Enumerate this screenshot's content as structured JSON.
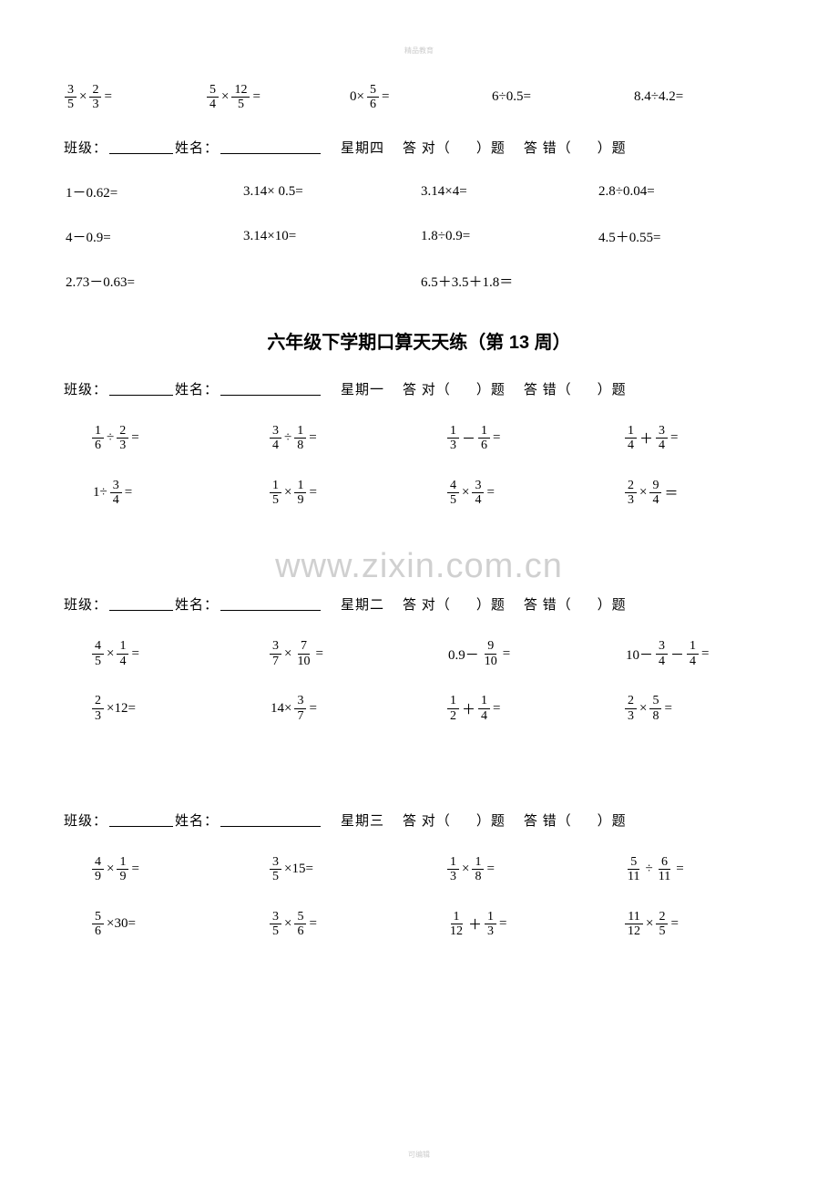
{
  "tiny_header": "精品教育",
  "footer": "可编辑",
  "watermark": "www.zixin.com.cn",
  "title": "六年级下学期口算天天练（第 13 周）",
  "header_labels": {
    "class": "班级：",
    "name": "姓名：",
    "day_thu": "星期四",
    "day_mon": "星期一",
    "day_tue": "星期二",
    "day_wed": "星期三",
    "correct_pre": "答 对（",
    "correct_suf": "）题",
    "wrong_pre": "答 错（",
    "wrong_suf": "）题"
  },
  "topRow1": [
    {
      "type": "frac_op",
      "a": {
        "n": "3",
        "d": "5"
      },
      "op": "×",
      "b": {
        "n": "2",
        "d": "3"
      },
      "eq": "="
    },
    {
      "type": "frac_op",
      "a": {
        "n": "5",
        "d": "4"
      },
      "op": "×",
      "b": {
        "n": "12",
        "d": "5"
      },
      "eq": "="
    },
    {
      "type": "mixed",
      "pre": "0×",
      "frac": {
        "n": "5",
        "d": "6"
      },
      "eq": "="
    },
    {
      "type": "plain",
      "text": "6÷0.5="
    },
    {
      "type": "plain",
      "text": "8.4÷4.2="
    }
  ],
  "thuRow1": [
    {
      "text": "1－0.62="
    },
    {
      "text": "3.14×  0.5="
    },
    {
      "text": "3.14×4="
    },
    {
      "text": "2.8÷0.04="
    }
  ],
  "thuRow2": [
    {
      "text": "4－0.9="
    },
    {
      "text": "3.14×10="
    },
    {
      "text": "1.8÷0.9="
    },
    {
      "text": "4.5＋0.55="
    }
  ],
  "thuRow3": [
    {
      "text": "2.73－0.63="
    },
    {
      "text": "6.5＋3.5＋1.8＝"
    }
  ],
  "monRow1": [
    {
      "a": {
        "n": "1",
        "d": "6"
      },
      "op": "÷",
      "b": {
        "n": "2",
        "d": "3"
      },
      "eq": "="
    },
    {
      "a": {
        "n": "3",
        "d": "4"
      },
      "op": "÷",
      "b": {
        "n": "1",
        "d": "8"
      },
      "eq": "="
    },
    {
      "a": {
        "n": "1",
        "d": "3"
      },
      "op": "－",
      "b": {
        "n": "1",
        "d": "6"
      },
      "eq": "="
    },
    {
      "a": {
        "n": "1",
        "d": "4"
      },
      "op": "＋",
      "b": {
        "n": "3",
        "d": "4"
      },
      "eq": "="
    }
  ],
  "monRow2": [
    {
      "pre": "1÷",
      "frac": {
        "n": "3",
        "d": "4"
      },
      "eq": "="
    },
    {
      "a": {
        "n": "1",
        "d": "5"
      },
      "op": "×",
      "b": {
        "n": "1",
        "d": "9"
      },
      "eq": "="
    },
    {
      "a": {
        "n": "4",
        "d": "5"
      },
      "op": "×",
      "b": {
        "n": "3",
        "d": "4"
      },
      "eq": "="
    },
    {
      "a": {
        "n": "2",
        "d": "3"
      },
      "op": "×",
      "b": {
        "n": "9",
        "d": "4"
      },
      "eq": "＝"
    }
  ],
  "tueRow1": [
    {
      "a": {
        "n": "4",
        "d": "5"
      },
      "op": "×",
      "b": {
        "n": "1",
        "d": "4"
      },
      "eq": "="
    },
    {
      "a": {
        "n": "3",
        "d": "7"
      },
      "op": "×",
      "b": {
        "n": "7",
        "d": "10"
      },
      "eq": "="
    },
    {
      "pre": "0.9－",
      "frac": {
        "n": "9",
        "d": "10"
      },
      "eq": "="
    },
    {
      "pre": "10－",
      "a": {
        "n": "3",
        "d": "4"
      },
      "op": "－",
      "b": {
        "n": "1",
        "d": "4"
      },
      "eq": "="
    }
  ],
  "tueRow2": [
    {
      "frac": {
        "n": "2",
        "d": "3"
      },
      "post": "×12="
    },
    {
      "pre": "14×",
      "frac": {
        "n": "3",
        "d": "7"
      },
      "eq": "="
    },
    {
      "a": {
        "n": "1",
        "d": "2"
      },
      "op": "＋",
      "b": {
        "n": "1",
        "d": "4"
      },
      "eq": "="
    },
    {
      "a": {
        "n": "2",
        "d": "3"
      },
      "op": "×",
      "b": {
        "n": "5",
        "d": "8"
      },
      "eq": "="
    }
  ],
  "wedRow1": [
    {
      "a": {
        "n": "4",
        "d": "9"
      },
      "op": "×",
      "b": {
        "n": "1",
        "d": "9"
      },
      "eq": "="
    },
    {
      "frac": {
        "n": "3",
        "d": "5"
      },
      "post": "×15="
    },
    {
      "a": {
        "n": "1",
        "d": "3"
      },
      "op": "×",
      "b": {
        "n": "1",
        "d": "8"
      },
      "eq": "="
    },
    {
      "a": {
        "n": "5",
        "d": "11"
      },
      "op": "÷",
      "b": {
        "n": "6",
        "d": "11"
      },
      "eq": "="
    }
  ],
  "wedRow2": [
    {
      "frac": {
        "n": "5",
        "d": "6"
      },
      "post": "×30="
    },
    {
      "a": {
        "n": "3",
        "d": "5"
      },
      "op": "×",
      "b": {
        "n": "5",
        "d": "6"
      },
      "eq": "="
    },
    {
      "a": {
        "n": "1",
        "d": "12"
      },
      "op": "＋",
      "b": {
        "n": "1",
        "d": "3"
      },
      "eq": "="
    },
    {
      "a": {
        "n": "11",
        "d": "12"
      },
      "op": "×",
      "b": {
        "n": "2",
        "d": "5"
      },
      "eq": "="
    }
  ],
  "colors": {
    "text": "#000000",
    "bg": "#ffffff",
    "watermark": "#d0d0d0"
  }
}
